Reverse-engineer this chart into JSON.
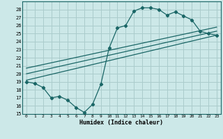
{
  "xlabel": "Humidex (Indice chaleur)",
  "bg_color": "#cce8e8",
  "grid_color": "#aacccc",
  "line_color": "#1a6666",
  "xlim": [
    -0.5,
    23.5
  ],
  "ylim": [
    15,
    29
  ],
  "yticks": [
    15,
    16,
    17,
    18,
    19,
    20,
    21,
    22,
    23,
    24,
    25,
    26,
    27,
    28
  ],
  "xticks": [
    0,
    1,
    2,
    3,
    4,
    5,
    6,
    7,
    8,
    9,
    10,
    11,
    12,
    13,
    14,
    15,
    16,
    17,
    18,
    19,
    20,
    21,
    22,
    23
  ],
  "series1_x": [
    0,
    1,
    2,
    3,
    4,
    5,
    6,
    7,
    8,
    9,
    10,
    11,
    12,
    13,
    14,
    15,
    16,
    17,
    18,
    19,
    20,
    21,
    22,
    23
  ],
  "series1_y": [
    19.0,
    18.8,
    18.3,
    17.0,
    17.2,
    16.7,
    15.8,
    15.2,
    16.2,
    18.7,
    23.2,
    25.7,
    26.0,
    27.8,
    28.2,
    28.2,
    28.0,
    27.3,
    27.7,
    27.2,
    26.7,
    25.3,
    25.0,
    24.8
  ],
  "series2_x": [
    0,
    23
  ],
  "series2_y": [
    19.2,
    24.8
  ],
  "series3_x": [
    0,
    23
  ],
  "series3_y": [
    20.0,
    25.3
  ],
  "series4_x": [
    0,
    23
  ],
  "series4_y": [
    20.7,
    25.8
  ]
}
